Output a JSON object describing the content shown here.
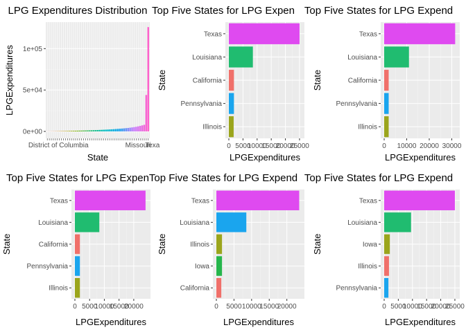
{
  "colors": {
    "panel_bg": "#EBEBEB",
    "grid_major": "#FFFFFF",
    "tick_text": "#4D4D4D",
    "title_text": "#000000",
    "state_palette": {
      "Texas": "#DF4AF0",
      "Louisiana": "#20BC70",
      "California": "#F0706A",
      "Pennsylvania": "#1AA5EE",
      "Illinois": "#9BA51C",
      "Iowa": "#26B64C"
    },
    "state_palette_panel5": {
      "Texas": "#DF4AF0",
      "Louisiana": "#1AA5EE",
      "Illinois": "#9BA51C",
      "Iowa": "#26B64C",
      "California": "#F0706A"
    },
    "state_palette_panel6": {
      "Texas": "#DF4AF0",
      "Louisiana": "#20BC70",
      "Iowa": "#9BA51C",
      "Illinois": "#F0706A",
      "Pennsylvania": "#1AA5EE"
    },
    "distribution_gradient": [
      "#F0706A",
      "#C99A14",
      "#7CAE00",
      "#20BC70",
      "#00BFC4",
      "#1AA5EE",
      "#C77CFF",
      "#FF61CC"
    ]
  },
  "chart_data": [
    {
      "type": "bar",
      "title": "LPG Expenditures Distribution",
      "xlabel": "State",
      "ylabel": "LPGExpenditures",
      "ylim": [
        0,
        132000
      ],
      "yticks": [
        0,
        50000,
        100000
      ],
      "ytick_labels": [
        "0e+00",
        "5e+04",
        "1e+05"
      ],
      "visible_category_labels": [
        "District of Columbia",
        "Missouri",
        "Texa"
      ],
      "category_count": 51,
      "values": [
        80,
        120,
        160,
        200,
        250,
        300,
        350,
        400,
        450,
        500,
        560,
        620,
        680,
        740,
        800,
        870,
        940,
        1010,
        1080,
        1150,
        1230,
        1310,
        1400,
        1490,
        1590,
        1690,
        1800,
        1910,
        2030,
        2150,
        2280,
        2420,
        2570,
        2730,
        2900,
        3080,
        3270,
        3470,
        3700,
        3950,
        4200,
        4500,
        4850,
        5200,
        5600,
        6100,
        6700,
        7300,
        8000,
        44000,
        126000
      ],
      "grid": true,
      "legend": "none"
    },
    {
      "type": "bar",
      "orientation": "horizontal",
      "title": "Top Five States for LPG Expen",
      "xlabel": "LPGExpenditures",
      "ylabel": "State",
      "categories": [
        "Texas",
        "Louisiana",
        "California",
        "Pennsylvania",
        "Illinois"
      ],
      "values": [
        25000,
        8500,
        1800,
        1800,
        1700
      ],
      "xlim": [
        0,
        25500
      ],
      "xticks": [
        0,
        5000,
        10000,
        15000,
        20000,
        25000
      ],
      "xtick_labels": [
        "0",
        "5000",
        "10000",
        "15000",
        "20000",
        "25000"
      ],
      "grid": true,
      "legend": "none"
    },
    {
      "type": "bar",
      "orientation": "horizontal",
      "title": "Top Five States for LPG Expend",
      "xlabel": "LPGExpenditures",
      "ylabel": "State",
      "categories": [
        "Texas",
        "Louisiana",
        "California",
        "Pennsylvania",
        "Illinois"
      ],
      "values": [
        31500,
        11000,
        2000,
        2000,
        2000
      ],
      "xlim": [
        0,
        32000
      ],
      "xticks": [
        0,
        10000,
        20000,
        30000
      ],
      "xtick_labels": [
        "0",
        "10000",
        "20000",
        "30000"
      ],
      "grid": true,
      "legend": "none"
    },
    {
      "type": "bar",
      "orientation": "horizontal",
      "title": "Top Five States for LPG Expen",
      "xlabel": "LPGExpenditures",
      "ylabel": "State",
      "categories": [
        "Texas",
        "Louisiana",
        "California",
        "Pennsylvania",
        "Illinois"
      ],
      "values": [
        24000,
        8300,
        1700,
        1700,
        1700
      ],
      "xlim": [
        0,
        24500
      ],
      "xticks": [
        0,
        5000,
        10000,
        15000,
        20000
      ],
      "xtick_labels": [
        "0",
        "5000",
        "10000",
        "15000",
        "20000"
      ],
      "grid": true,
      "legend": "none"
    },
    {
      "type": "bar",
      "orientation": "horizontal",
      "title": "Top Five States for LPG Expend",
      "xlabel": "LPGExpenditures",
      "ylabel": "State",
      "categories": [
        "Texas",
        "Louisiana",
        "Illinois",
        "Iowa",
        "California"
      ],
      "values": [
        23500,
        8500,
        1600,
        1600,
        1400
      ],
      "xlim": [
        0,
        24000
      ],
      "xticks": [
        0,
        5000,
        10000,
        15000,
        20000
      ],
      "xtick_labels": [
        "0",
        "5000",
        "10000",
        "15000",
        "20000"
      ],
      "grid": true,
      "legend": "none"
    },
    {
      "type": "bar",
      "orientation": "horizontal",
      "title": "Top Five States for LPG Expend",
      "xlabel": "LPGExpenditures",
      "ylabel": "State",
      "categories": [
        "Texas",
        "Louisiana",
        "Iowa",
        "Illinois",
        "Pennsylvania"
      ],
      "values": [
        25000,
        9500,
        2000,
        1700,
        1500
      ],
      "xlim": [
        0,
        25500
      ],
      "xticks": [
        0,
        5000,
        10000,
        15000,
        20000,
        25000
      ],
      "xtick_labels": [
        "0",
        "5000",
        "10000",
        "15000",
        "20000",
        "25000"
      ],
      "grid": true,
      "legend": "none"
    }
  ]
}
